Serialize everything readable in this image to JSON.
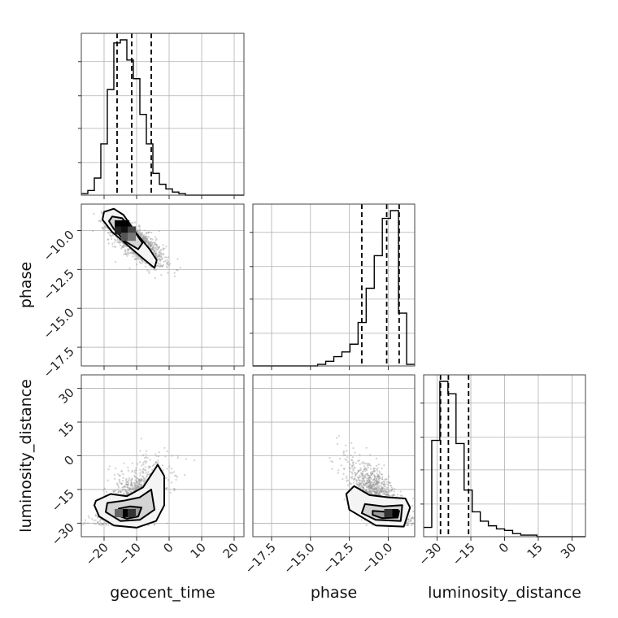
{
  "chart_data": {
    "type": "corner",
    "grid": true,
    "parameters": [
      "geocent_time",
      "phase",
      "luminosity_distance"
    ],
    "ranges": {
      "geocent_time": [
        -27,
        23
      ],
      "phase": [
        -18.7,
        -8.3
      ],
      "luminosity_distance": [
        -36,
        36
      ]
    },
    "ticks": {
      "geocent_time": [
        -20,
        -10,
        0,
        10,
        20
      ],
      "phase": [
        -17.5,
        -15.0,
        -12.5,
        -10.0
      ],
      "luminosity_distance": [
        -30,
        -15,
        0,
        15,
        30
      ]
    },
    "tick_labels": {
      "geocent_time": [
        "−20",
        "−10",
        "0",
        "10",
        "20"
      ],
      "phase": [
        "−17.5",
        "−15.0",
        "−12.5",
        "−10.0"
      ],
      "luminosity_distance": [
        "−30",
        "−15",
        "0",
        "15",
        "30"
      ]
    },
    "histograms": {
      "geocent_time": {
        "bin_edges": [
          -27,
          -25,
          -23,
          -21,
          -19,
          -17,
          -15,
          -13,
          -11,
          -9,
          -7,
          -5,
          -3,
          -1,
          1,
          3,
          5,
          7,
          9,
          11,
          13,
          15,
          17,
          19,
          21,
          23
        ],
        "counts": [
          0.01,
          0.03,
          0.11,
          0.33,
          0.68,
          0.98,
          1.0,
          0.87,
          0.75,
          0.52,
          0.33,
          0.14,
          0.07,
          0.04,
          0.02,
          0.01,
          0.0,
          0.0,
          0.0,
          0.0,
          0.0,
          0.0,
          0.0,
          0.0,
          0.0
        ],
        "quantiles": [
          -16,
          -11.5,
          -5.5
        ]
      },
      "phase": {
        "bin_edges": [
          -18.7,
          -18.18,
          -17.66,
          -17.14,
          -16.62,
          -16.1,
          -15.58,
          -15.06,
          -14.54,
          -14.02,
          -13.5,
          -12.98,
          -12.46,
          -11.94,
          -11.42,
          -10.9,
          -10.38,
          -9.86,
          -9.34,
          -8.82,
          -8.3
        ],
        "counts": [
          0.0,
          0.0,
          0.0,
          0.0,
          0.0,
          0.0,
          0.0,
          0.0,
          0.01,
          0.03,
          0.06,
          0.09,
          0.14,
          0.28,
          0.5,
          0.71,
          0.95,
          1.0,
          0.34,
          0.01
        ],
        "quantiles": [
          -11.7,
          -10.1,
          -9.3
        ]
      },
      "luminosity_distance": {
        "bin_edges": [
          -36,
          -32.4,
          -28.8,
          -25.2,
          -21.6,
          -18,
          -14.4,
          -10.8,
          -7.2,
          -3.6,
          0,
          3.6,
          7.2,
          10.8,
          14.4,
          18,
          21.6,
          25.2,
          28.8,
          32.4,
          36
        ],
        "counts": [
          0.06,
          0.62,
          1.0,
          0.92,
          0.6,
          0.3,
          0.16,
          0.1,
          0.07,
          0.05,
          0.04,
          0.02,
          0.01,
          0.01,
          0.0,
          0.0,
          0.0,
          0.0,
          0.0,
          0.0
        ],
        "quantiles": [
          -28.5,
          -25.0,
          -16.0
        ]
      }
    },
    "contours": {
      "phase_vs_geocent_time": [
        [
          [
            -20,
            -8.8
          ],
          [
            -17,
            -8.6
          ],
          [
            -14,
            -9.0
          ],
          [
            -10,
            -10.2
          ],
          [
            -6,
            -11.2
          ],
          [
            -3.8,
            -11.9
          ],
          [
            -4.5,
            -12.4
          ],
          [
            -8,
            -11.8
          ],
          [
            -13,
            -10.9
          ],
          [
            -17.5,
            -10.1
          ],
          [
            -20.5,
            -9.3
          ]
        ],
        [
          [
            -17.5,
            -9.1
          ],
          [
            -14.5,
            -9.2
          ],
          [
            -10.5,
            -10.1
          ],
          [
            -8.2,
            -10.8
          ],
          [
            -9.5,
            -11.2
          ],
          [
            -13.5,
            -10.7
          ],
          [
            -17,
            -9.9
          ],
          [
            -18.5,
            -9.4
          ]
        ],
        [
          [
            -15.5,
            -9.4
          ],
          [
            -13,
            -9.6
          ],
          [
            -11,
            -10.3
          ],
          [
            -12.5,
            -10.6
          ],
          [
            -15,
            -10.1
          ],
          [
            -16,
            -9.7
          ]
        ]
      ],
      "luminosity_distance_vs_geocent_time": [
        [
          [
            -22.5,
            -20
          ],
          [
            -18,
            -17
          ],
          [
            -13,
            -18
          ],
          [
            -8,
            -14
          ],
          [
            -3.5,
            -4
          ],
          [
            -1.5,
            -9
          ],
          [
            -1.5,
            -22
          ],
          [
            -4,
            -29
          ],
          [
            -10,
            -32
          ],
          [
            -17,
            -31
          ],
          [
            -21.5,
            -27
          ],
          [
            -23,
            -22
          ]
        ],
        [
          [
            -19,
            -21
          ],
          [
            -14,
            -20
          ],
          [
            -9,
            -18.5
          ],
          [
            -5.5,
            -15
          ],
          [
            -4.5,
            -24
          ],
          [
            -9,
            -28.5
          ],
          [
            -15,
            -29
          ],
          [
            -19.5,
            -25
          ]
        ],
        [
          [
            -15.5,
            -23.5
          ],
          [
            -12,
            -22.5
          ],
          [
            -8.5,
            -23
          ],
          [
            -9.5,
            -27
          ],
          [
            -13,
            -28
          ],
          [
            -16,
            -26.5
          ]
        ]
      ],
      "luminosity_distance_vs_phase": [
        [
          [
            -12.2,
            -13.5
          ],
          [
            -11.2,
            -17.5
          ],
          [
            -10,
            -18.5
          ],
          [
            -8.9,
            -19
          ],
          [
            -8.6,
            -23
          ],
          [
            -9,
            -31.5
          ],
          [
            -10.8,
            -31
          ],
          [
            -12.5,
            -24
          ],
          [
            -12.7,
            -17
          ]
        ],
        [
          [
            -11.5,
            -21.5
          ],
          [
            -10.3,
            -22.5
          ],
          [
            -9.1,
            -22
          ],
          [
            -9.2,
            -29
          ],
          [
            -10.8,
            -28.5
          ],
          [
            -11.7,
            -25.5
          ]
        ],
        [
          [
            -11,
            -24.5
          ],
          [
            -10,
            -25
          ],
          [
            -9.3,
            -24.5
          ],
          [
            -9.4,
            -27.5
          ],
          [
            -10.4,
            -27.8
          ],
          [
            -11,
            -26.3
          ]
        ]
      ]
    },
    "density_cores": {
      "phase_vs_geocent_time": [
        {
          "x": -15.5,
          "y": -9.6,
          "shade": "#000000"
        },
        {
          "x": -13.5,
          "y": -9.6,
          "shade": "#000000"
        },
        {
          "x": -15.5,
          "y": -10.0,
          "shade": "#222222"
        },
        {
          "x": -13.5,
          "y": -10.0,
          "shade": "#111111"
        },
        {
          "x": -11.5,
          "y": -10.0,
          "shade": "#444444"
        },
        {
          "x": -13.5,
          "y": -10.4,
          "shade": "#555555"
        },
        {
          "x": -11.5,
          "y": -10.4,
          "shade": "#777777"
        }
      ],
      "luminosity_distance_vs_geocent_time": [
        {
          "x": -13.5,
          "y": -25.5,
          "shade": "#000000"
        },
        {
          "x": -11.5,
          "y": -25.5,
          "shade": "#333333"
        },
        {
          "x": -15.5,
          "y": -25.5,
          "shade": "#666666"
        }
      ],
      "luminosity_distance_vs_phase": [
        {
          "x": -9.6,
          "y": -25.5,
          "shade": "#000000"
        },
        {
          "x": -10.0,
          "y": -25.5,
          "shade": "#333333"
        }
      ]
    }
  }
}
